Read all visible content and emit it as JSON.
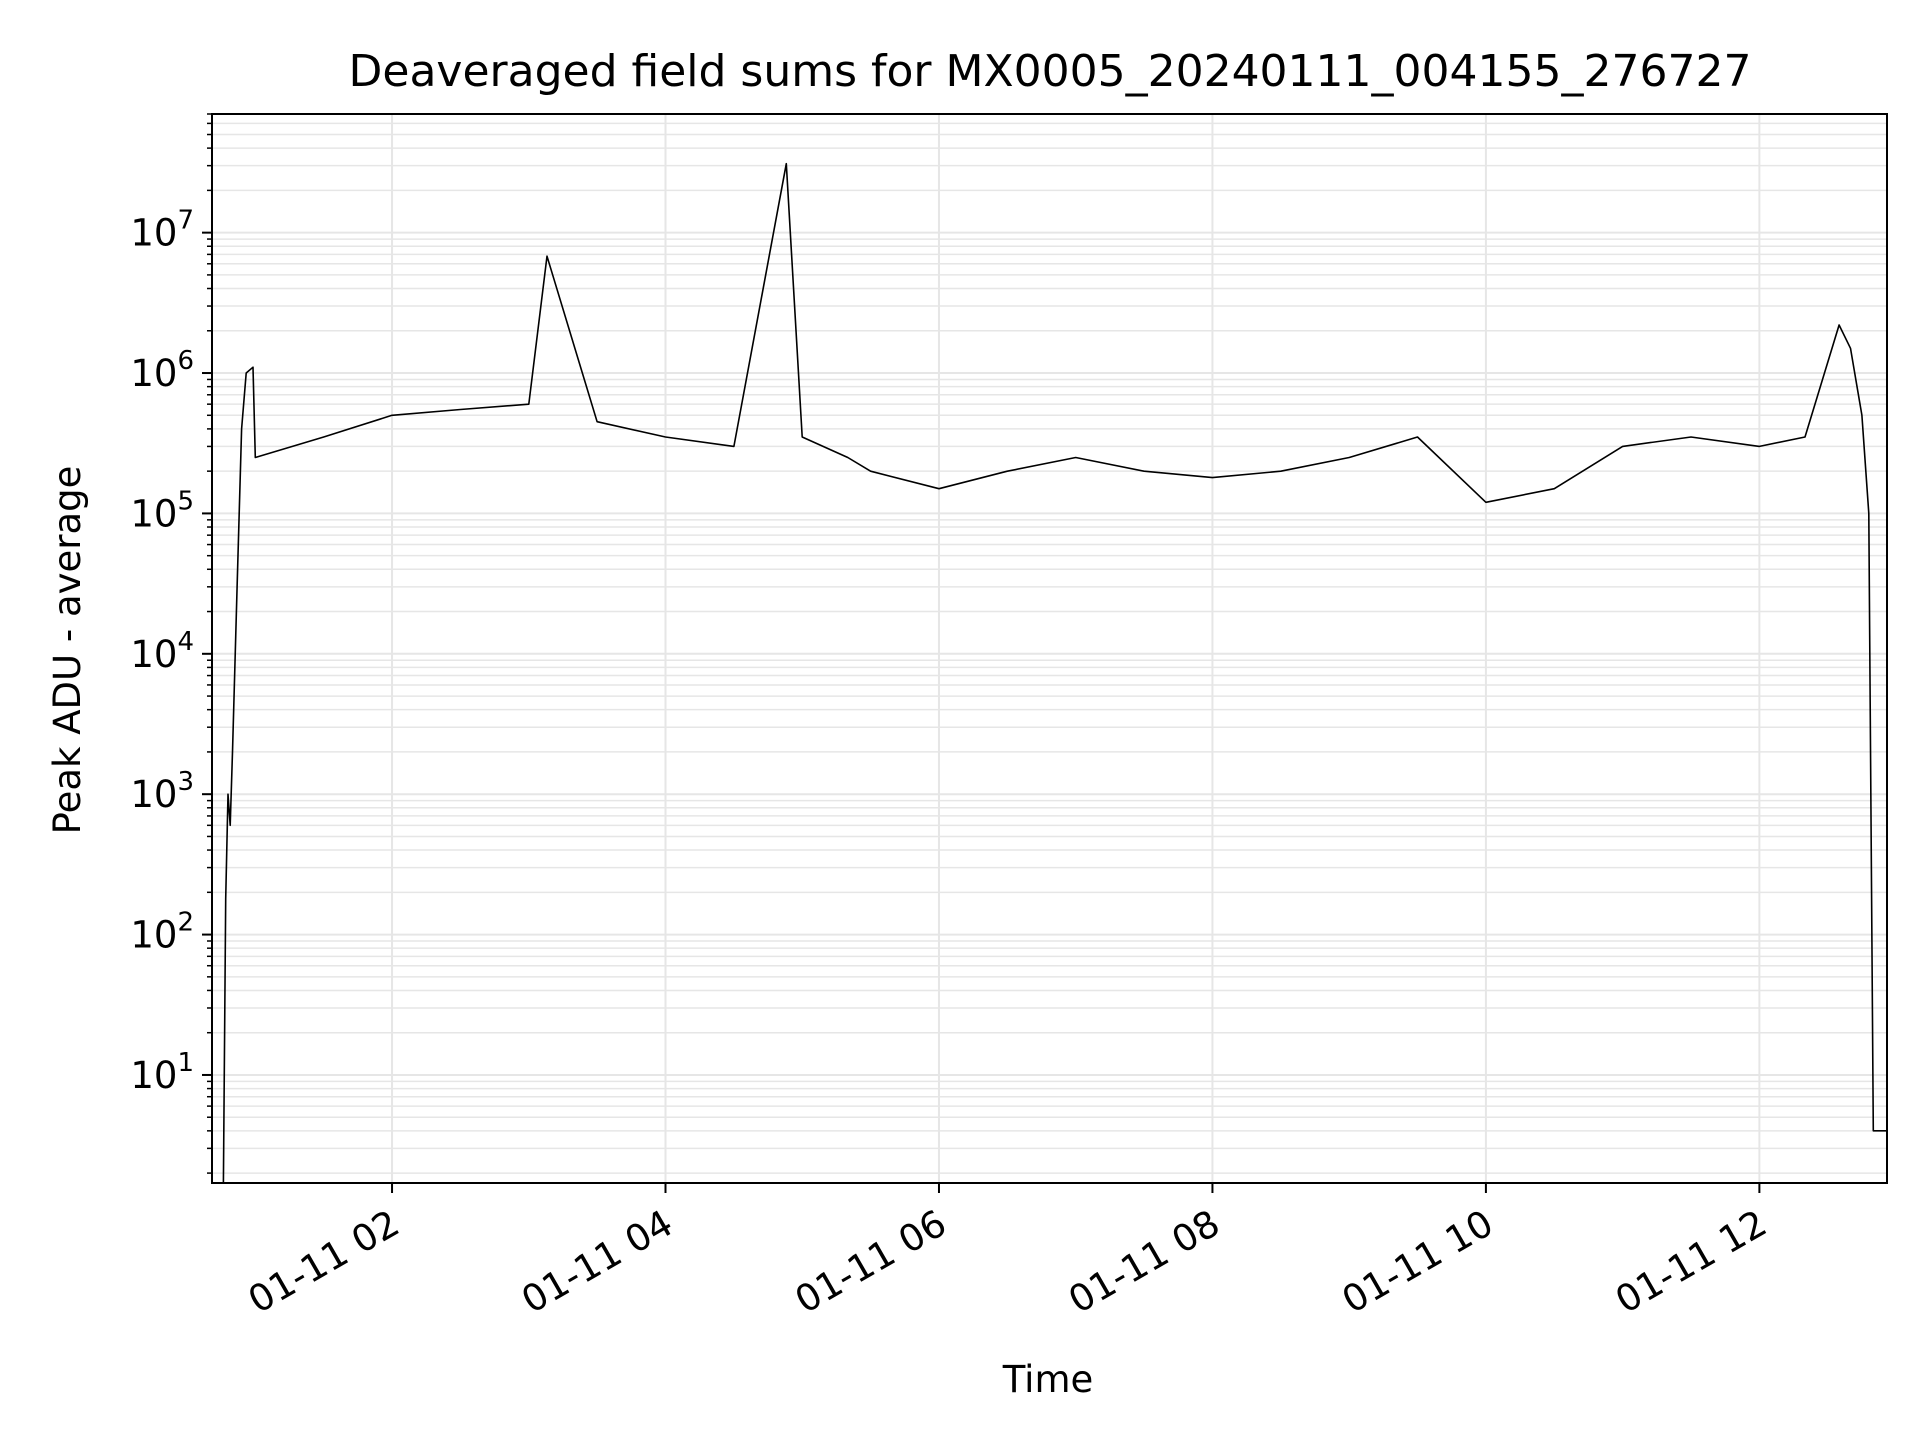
{
  "chart_data": {
    "type": "line",
    "title": "Deaveraged field sums for MX0005_20240111_004155_276727",
    "xlabel": "Time",
    "ylabel": "Peak ADU - average",
    "yscale": "log",
    "ylim": [
      1.7,
      70000000
    ],
    "xlim": [
      "2024-01-11 00:41",
      "2024-01-11 12:56"
    ],
    "grid": true,
    "line_color": "#000000",
    "grid_color": "#e6e6e6",
    "x_ticks": [
      {
        "label": "01-11 02",
        "value": "2024-01-11 02:00"
      },
      {
        "label": "01-11 04",
        "value": "2024-01-11 04:00"
      },
      {
        "label": "01-11 06",
        "value": "2024-01-11 06:00"
      },
      {
        "label": "01-11 08",
        "value": "2024-01-11 08:00"
      },
      {
        "label": "01-11 10",
        "value": "2024-01-11 10:00"
      },
      {
        "label": "01-11 12",
        "value": "2024-01-11 12:00"
      }
    ],
    "y_ticks": [
      {
        "base": "10",
        "exp": "1",
        "value": 10
      },
      {
        "base": "10",
        "exp": "2",
        "value": 100
      },
      {
        "base": "10",
        "exp": "3",
        "value": 1000
      },
      {
        "base": "10",
        "exp": "4",
        "value": 10000
      },
      {
        "base": "10",
        "exp": "5",
        "value": 100000
      },
      {
        "base": "10",
        "exp": "6",
        "value": 1000000
      },
      {
        "base": "10",
        "exp": "7",
        "value": 10000000
      }
    ],
    "series": [
      {
        "x": [
          "2024-01-11 00:46",
          "2024-01-11 00:47",
          "2024-01-11 00:48",
          "2024-01-11 00:49",
          "2024-01-11 00:50",
          "2024-01-11 00:52",
          "2024-01-11 00:54",
          "2024-01-11 00:56",
          "2024-01-11 00:59",
          "2024-01-11 01:00",
          "2024-01-11 01:30",
          "2024-01-11 02:00",
          "2024-01-11 02:30",
          "2024-01-11 03:00",
          "2024-01-11 03:08",
          "2024-01-11 03:30",
          "2024-01-11 04:00",
          "2024-01-11 04:30",
          "2024-01-11 04:53",
          "2024-01-11 05:00",
          "2024-01-11 05:20",
          "2024-01-11 05:30",
          "2024-01-11 06:00",
          "2024-01-11 06:30",
          "2024-01-11 07:00",
          "2024-01-11 07:30",
          "2024-01-11 08:00",
          "2024-01-11 08:30",
          "2024-01-11 09:00",
          "2024-01-11 09:30",
          "2024-01-11 10:00",
          "2024-01-11 10:30",
          "2024-01-11 11:00",
          "2024-01-11 11:30",
          "2024-01-11 12:00",
          "2024-01-11 12:20",
          "2024-01-11 12:35",
          "2024-01-11 12:40",
          "2024-01-11 12:45",
          "2024-01-11 12:48",
          "2024-01-11 12:50",
          "2024-01-11 12:56"
        ],
        "y": [
          1.7,
          180,
          1000,
          600,
          2000,
          30000,
          400000,
          1000000,
          1100000,
          250000,
          350000,
          500000,
          550000,
          600000,
          6800000,
          450000,
          350000,
          300000,
          31000000,
          350000,
          250000,
          200000,
          150000,
          200000,
          250000,
          200000,
          180000,
          200000,
          250000,
          350000,
          120000,
          150000,
          300000,
          350000,
          300000,
          350000,
          2200000,
          1500000,
          500000,
          100000,
          4,
          4
        ]
      }
    ]
  }
}
